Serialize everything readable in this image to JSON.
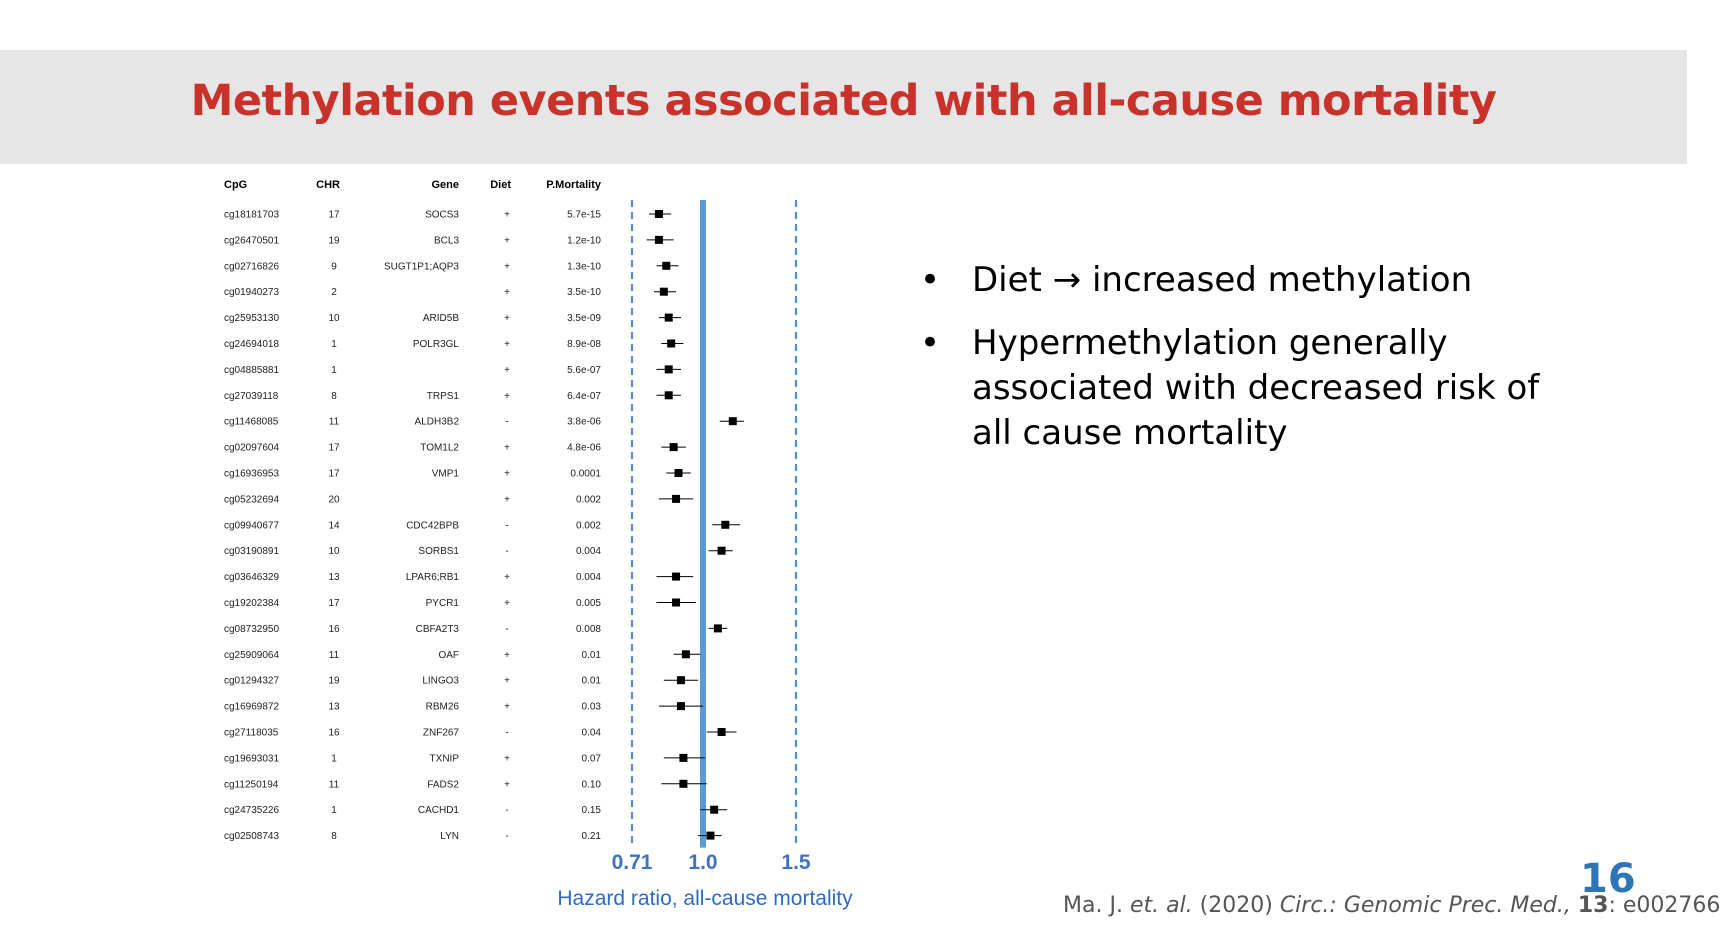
{
  "slide": {
    "title": "Methylation events associated with all-cause mortality",
    "page_number": "16",
    "bullets": [
      {
        "text": "Diet → increased methylation"
      },
      {
        "text": "Hypermethylation generally associated with decreased risk of all cause mortality"
      }
    ],
    "citation": {
      "author": "Ma. J. ",
      "etal": "et. al.",
      "year": " (2020) ",
      "journal": "Circ.: Genomic Prec. Med.,",
      "volume": "13",
      "article": ": e002766"
    }
  },
  "colors": {
    "title": "#c8322a",
    "axis_blue": "#4f8fd6",
    "page_number": "#2e75b6"
  },
  "chart_data": {
    "type": "forest",
    "title": "",
    "xlabel": "Hazard ratio, all-cause mortality",
    "xlim": [
      0.62,
      1.62
    ],
    "ticks": [
      {
        "value": 0.71,
        "label": "0.71",
        "style": "dashed"
      },
      {
        "value": 1.0,
        "label": "1.0",
        "style": "solid"
      },
      {
        "value": 1.5,
        "label": "1.5",
        "style": "dashed"
      }
    ],
    "columns": [
      "CpG",
      "CHR",
      "Gene",
      "Diet",
      "P.Mortality"
    ],
    "rows": [
      {
        "cpg": "cg18181703",
        "chr": "17",
        "gene": "SOCS3",
        "diet": "+",
        "p": "5.7e-15",
        "hr": 0.82,
        "lo": 0.78,
        "hi": 0.87
      },
      {
        "cpg": "cg26470501",
        "chr": "19",
        "gene": "BCL3",
        "diet": "+",
        "p": "1.2e-10",
        "hr": 0.82,
        "lo": 0.77,
        "hi": 0.88
      },
      {
        "cpg": "cg02716826",
        "chr": "9",
        "gene": "SUGT1P1;AQP3",
        "diet": "+",
        "p": "1.3e-10",
        "hr": 0.85,
        "lo": 0.81,
        "hi": 0.9
      },
      {
        "cpg": "cg01940273",
        "chr": "2",
        "gene": "",
        "diet": "+",
        "p": "3.5e-10",
        "hr": 0.84,
        "lo": 0.8,
        "hi": 0.89
      },
      {
        "cpg": "cg25953130",
        "chr": "10",
        "gene": "ARID5B",
        "diet": "+",
        "p": "3.5e-09",
        "hr": 0.86,
        "lo": 0.82,
        "hi": 0.91
      },
      {
        "cpg": "cg24694018",
        "chr": "1",
        "gene": "POLR3GL",
        "diet": "+",
        "p": "8.9e-08",
        "hr": 0.87,
        "lo": 0.83,
        "hi": 0.92
      },
      {
        "cpg": "cg04885881",
        "chr": "1",
        "gene": "",
        "diet": "+",
        "p": "5.6e-07",
        "hr": 0.86,
        "lo": 0.81,
        "hi": 0.91
      },
      {
        "cpg": "cg27039118",
        "chr": "8",
        "gene": "TRPS1",
        "diet": "+",
        "p": "6.4e-07",
        "hr": 0.86,
        "lo": 0.81,
        "hi": 0.91
      },
      {
        "cpg": "cg11468085",
        "chr": "11",
        "gene": "ALDH3B2",
        "diet": "-",
        "p": "3.8e-06",
        "hr": 1.16,
        "lo": 1.09,
        "hi": 1.22
      },
      {
        "cpg": "cg02097604",
        "chr": "17",
        "gene": "TOM1L2",
        "diet": "+",
        "p": "4.8e-06",
        "hr": 0.88,
        "lo": 0.83,
        "hi": 0.93
      },
      {
        "cpg": "cg16936953",
        "chr": "17",
        "gene": "VMP1",
        "diet": "+",
        "p": "0.0001",
        "hr": 0.9,
        "lo": 0.85,
        "hi": 0.95
      },
      {
        "cpg": "cg05232694",
        "chr": "20",
        "gene": "",
        "diet": "+",
        "p": "0.002",
        "hr": 0.89,
        "lo": 0.82,
        "hi": 0.96
      },
      {
        "cpg": "cg09940677",
        "chr": "14",
        "gene": "CDC42BPB",
        "diet": "-",
        "p": "0.002",
        "hr": 1.12,
        "lo": 1.05,
        "hi": 1.2
      },
      {
        "cpg": "cg03190891",
        "chr": "10",
        "gene": "SORBS1",
        "diet": "-",
        "p": "0.004",
        "hr": 1.1,
        "lo": 1.03,
        "hi": 1.16
      },
      {
        "cpg": "cg03646329",
        "chr": "13",
        "gene": "LPAR6;RB1",
        "diet": "+",
        "p": "0.004",
        "hr": 0.89,
        "lo": 0.81,
        "hi": 0.96
      },
      {
        "cpg": "cg19202384",
        "chr": "17",
        "gene": "PYCR1",
        "diet": "+",
        "p": "0.005",
        "hr": 0.89,
        "lo": 0.81,
        "hi": 0.97
      },
      {
        "cpg": "cg08732950",
        "chr": "16",
        "gene": "CBFA2T3",
        "diet": "-",
        "p": "0.008",
        "hr": 1.08,
        "lo": 1.03,
        "hi": 1.13
      },
      {
        "cpg": "cg25909064",
        "chr": "11",
        "gene": "OAF",
        "diet": "+",
        "p": "0.01",
        "hr": 0.93,
        "lo": 0.88,
        "hi": 0.99
      },
      {
        "cpg": "cg01294327",
        "chr": "19",
        "gene": "LINGO3",
        "diet": "+",
        "p": "0.01",
        "hr": 0.91,
        "lo": 0.84,
        "hi": 0.98
      },
      {
        "cpg": "cg16969872",
        "chr": "13",
        "gene": "RBM26",
        "diet": "+",
        "p": "0.03",
        "hr": 0.91,
        "lo": 0.82,
        "hi": 1.0
      },
      {
        "cpg": "cg27118035",
        "chr": "16",
        "gene": "ZNF267",
        "diet": "-",
        "p": "0.04",
        "hr": 1.1,
        "lo": 1.02,
        "hi": 1.18
      },
      {
        "cpg": "cg19693031",
        "chr": "1",
        "gene": "TXNIP",
        "diet": "+",
        "p": "0.07",
        "hr": 0.92,
        "lo": 0.84,
        "hi": 1.01
      },
      {
        "cpg": "cg11250194",
        "chr": "11",
        "gene": "FADS2",
        "diet": "+",
        "p": "0.10",
        "hr": 0.92,
        "lo": 0.83,
        "hi": 1.02
      },
      {
        "cpg": "cg24735226",
        "chr": "1",
        "gene": "CACHD1",
        "diet": "-",
        "p": "0.15",
        "hr": 1.06,
        "lo": 0.99,
        "hi": 1.13
      },
      {
        "cpg": "cg02508743",
        "chr": "8",
        "gene": "LYN",
        "diet": "-",
        "p": "0.21",
        "hr": 1.04,
        "lo": 0.98,
        "hi": 1.1
      }
    ]
  }
}
